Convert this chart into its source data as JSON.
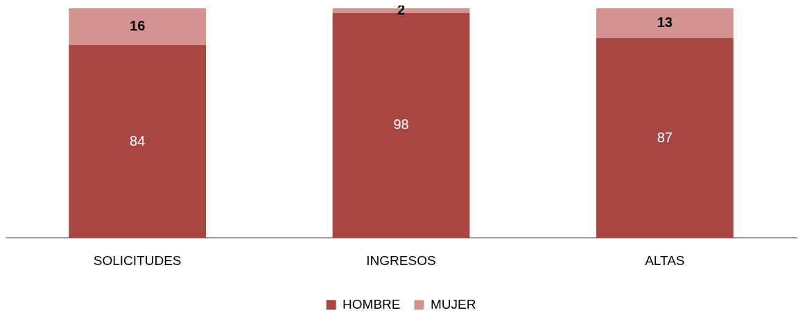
{
  "chart_data": {
    "type": "bar",
    "stacked": true,
    "categories": [
      "SOLICITUDES",
      "INGRESOS",
      "ALTAS"
    ],
    "series": [
      {
        "name": "HOMBRE",
        "color": "#a94644",
        "values": [
          84,
          98,
          87
        ]
      },
      {
        "name": "MUJER",
        "color": "#d49391",
        "values": [
          16,
          2,
          13
        ]
      }
    ],
    "data_labels": true,
    "legend": "bottom",
    "grid": false
  }
}
